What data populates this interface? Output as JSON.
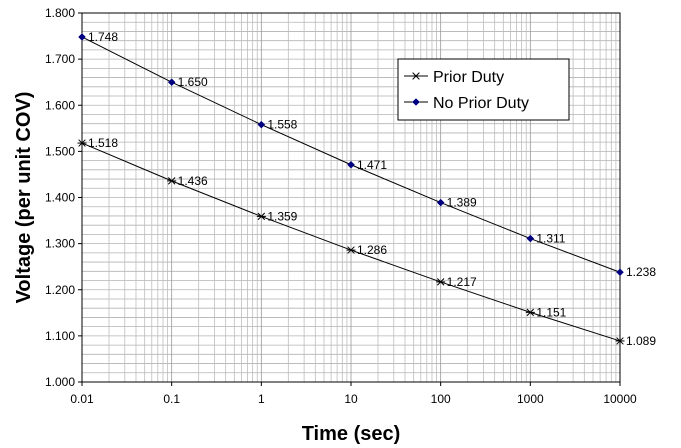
{
  "chart_data": {
    "type": "line",
    "x_scale": "log",
    "xlabel": "Time (sec)",
    "ylabel": "Voltage (per unit COV)",
    "xlim": [
      0.01,
      10000
    ],
    "ylim": [
      1.0,
      1.8
    ],
    "x_tick_labels": [
      "0.01",
      "0.1",
      "1",
      "10",
      "100",
      "1000",
      "10000"
    ],
    "y_tick_labels": [
      "1.000",
      "1.100",
      "1.200",
      "1.300",
      "1.400",
      "1.500",
      "1.600",
      "1.700",
      "1.800"
    ],
    "grid": true,
    "legend_position": "top-right",
    "x": [
      0.01,
      0.1,
      1,
      10,
      100,
      1000,
      10000
    ],
    "series": [
      {
        "name": "Prior Duty",
        "marker": "asterisk",
        "color": "#000000",
        "values": [
          1.518,
          1.436,
          1.359,
          1.286,
          1.217,
          1.151,
          1.089
        ],
        "labels": [
          "1.518",
          "1.436",
          "1.359",
          "1.286",
          "1.217",
          "1.151",
          "1.089"
        ]
      },
      {
        "name": "No Prior Duty",
        "marker": "diamond",
        "color": "#000080",
        "values": [
          1.748,
          1.65,
          1.558,
          1.471,
          1.389,
          1.311,
          1.238
        ],
        "labels": [
          "1.748",
          "1.650",
          "1.558",
          "1.471",
          "1.389",
          "1.311",
          "1.238"
        ]
      }
    ]
  }
}
